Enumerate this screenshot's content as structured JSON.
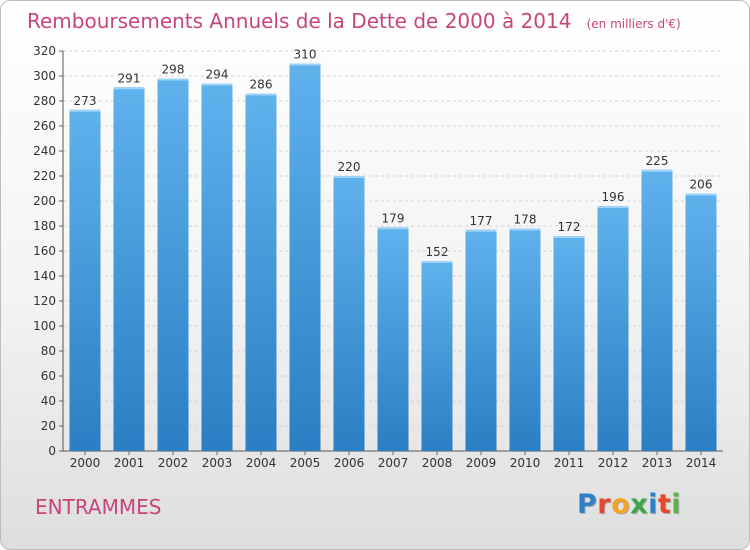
{
  "title": "Remboursements Annuels de la Dette de 2000 à 2014",
  "unit_label": "(en milliers d'€)",
  "commune": "ENTRAMMES",
  "logo": {
    "letters": [
      "P",
      "r",
      "o",
      "x",
      "i",
      "t",
      "i"
    ],
    "colors": [
      "#2f7fc4",
      "#e8472b",
      "#f2a51f",
      "#3da64a",
      "#2f7fc4",
      "#e8472b",
      "#5bb44a"
    ]
  },
  "colors": {
    "bar_light": "#5fb2ec",
    "bar_dark": "#2a7fc4",
    "title": "#c8457a"
  },
  "chart_data": {
    "type": "bar",
    "categories": [
      "2000",
      "2001",
      "2002",
      "2003",
      "2004",
      "2005",
      "2006",
      "2007",
      "2008",
      "2009",
      "2010",
      "2011",
      "2012",
      "2013",
      "2014"
    ],
    "values": [
      273,
      291,
      298,
      294,
      286,
      310,
      220,
      179,
      152,
      177,
      178,
      172,
      196,
      225,
      206
    ],
    "ylim": [
      0,
      320
    ],
    "yticks": [
      0,
      20,
      40,
      60,
      80,
      100,
      120,
      140,
      160,
      180,
      200,
      220,
      240,
      260,
      280,
      300,
      320
    ],
    "grid": true,
    "legend": "none"
  }
}
